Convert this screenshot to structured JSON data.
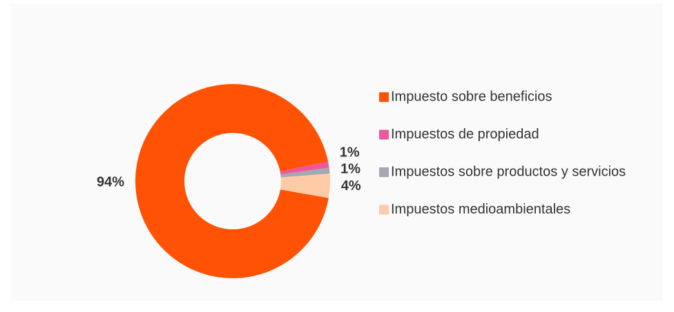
{
  "chart_data": {
    "type": "donut",
    "categories": [
      "Impuesto sobre beneficios",
      "Impuestos de propiedad",
      "Impuestos sobre productos y servicios",
      "Impuestos medioambientales"
    ],
    "values": [
      94,
      1,
      1,
      4
    ],
    "value_labels": [
      "94%",
      "1%",
      "1%",
      "4%"
    ],
    "colors": [
      "#ff5204",
      "#f0569a",
      "#a5a8b0",
      "#ffcba4"
    ],
    "legend": "right"
  }
}
